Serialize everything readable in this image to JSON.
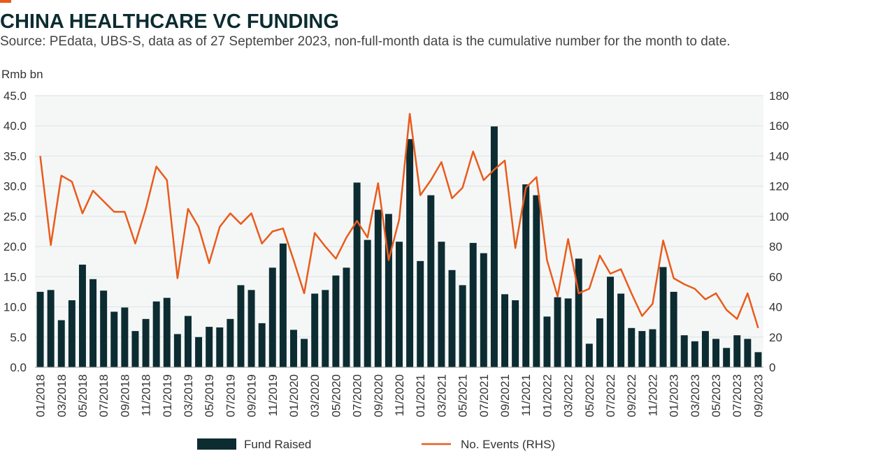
{
  "chart_data": {
    "type": "bar-line",
    "title": "CHINA HEALTHCARE VC FUNDING",
    "subtitle": "Source: PEdata, UBS-S, data as of 27 September 2023, non-full-month data is the cumulative number for the month to date.",
    "y_label": "Rmb bn",
    "categories": [
      "01/2018",
      null,
      "03/2018",
      null,
      "05/2018",
      null,
      "07/2018",
      null,
      "09/2018",
      null,
      "11/2018",
      null,
      "01/2019",
      null,
      "03/2019",
      null,
      "05/2019",
      null,
      "07/2019",
      null,
      "09/2019",
      null,
      "11/2019",
      null,
      "01/2020",
      null,
      "03/2020",
      null,
      "05/2020",
      null,
      "07/2020",
      null,
      "09/2020",
      null,
      "11/2020",
      null,
      "01/2021",
      null,
      "03/2021",
      null,
      "05/2021",
      null,
      "07/2021",
      null,
      "09/2021",
      null,
      "11/2021",
      null,
      "01/2022",
      null,
      "03/2022",
      null,
      "05/2022",
      null,
      "07/2022",
      null,
      "09/2022",
      null,
      "11/2022",
      null,
      "01/2023",
      null,
      "03/2023",
      null,
      "05/2023",
      null,
      "07/2023",
      null,
      "09/2023"
    ],
    "series": [
      {
        "name": "Fund Raised",
        "type": "bar",
        "color": "#0c2c31",
        "values": [
          12.5,
          12.8,
          7.8,
          11.1,
          17.0,
          14.6,
          12.7,
          9.2,
          9.9,
          6.0,
          8.0,
          10.9,
          11.5,
          5.5,
          8.5,
          5.0,
          6.7,
          6.6,
          8.0,
          13.6,
          12.8,
          7.3,
          16.5,
          20.5,
          6.2,
          4.7,
          12.2,
          12.8,
          15.2,
          16.5,
          30.6,
          21.1,
          26.1,
          25.4,
          20.8,
          37.8,
          17.6,
          28.5,
          20.8,
          16.1,
          13.6,
          20.6,
          18.9,
          39.9,
          12.1,
          11.1,
          30.3,
          28.5,
          8.4,
          11.6,
          11.4,
          18.0,
          3.9,
          8.1,
          15.0,
          12.2,
          6.5,
          6.0,
          6.3,
          16.6,
          12.5,
          5.3,
          4.3,
          6.0,
          4.7,
          3.2,
          5.3,
          4.7,
          2.5
        ]
      },
      {
        "name": "No. Events (RHS)",
        "type": "line",
        "axis": "y2",
        "color": "#ea5b1b",
        "values": [
          140,
          81,
          127,
          123,
          102,
          117,
          110,
          103,
          103,
          82,
          105,
          133,
          124,
          59,
          105,
          93,
          69,
          93,
          102,
          95,
          102,
          82,
          90,
          92,
          71,
          49,
          89,
          80,
          72,
          86,
          97,
          86,
          122,
          71,
          98,
          168,
          114,
          124,
          136,
          112,
          119,
          143,
          124,
          131,
          137,
          79,
          119,
          126,
          71,
          47,
          85,
          49,
          52,
          74,
          62,
          65,
          49,
          34,
          42,
          84,
          59,
          55,
          52,
          45,
          49,
          38,
          32,
          49,
          26
        ]
      }
    ],
    "ylim": [
      0,
      45
    ],
    "yticks": [
      {
        "value": 0,
        "label": "0.0"
      },
      {
        "value": 5,
        "label": "5.0"
      },
      {
        "value": 10,
        "label": "10.0"
      },
      {
        "value": 15,
        "label": "15.0"
      },
      {
        "value": 20,
        "label": "20.0"
      },
      {
        "value": 25,
        "label": "25.0"
      },
      {
        "value": 30,
        "label": "30.0"
      },
      {
        "value": 35,
        "label": "35.0"
      },
      {
        "value": 40,
        "label": "40.0"
      },
      {
        "value": 45,
        "label": "45.0"
      }
    ],
    "y2lim": [
      0,
      180
    ],
    "y2ticks": [
      0,
      20,
      40,
      60,
      80,
      100,
      120,
      140,
      160,
      180
    ],
    "grid": true
  }
}
